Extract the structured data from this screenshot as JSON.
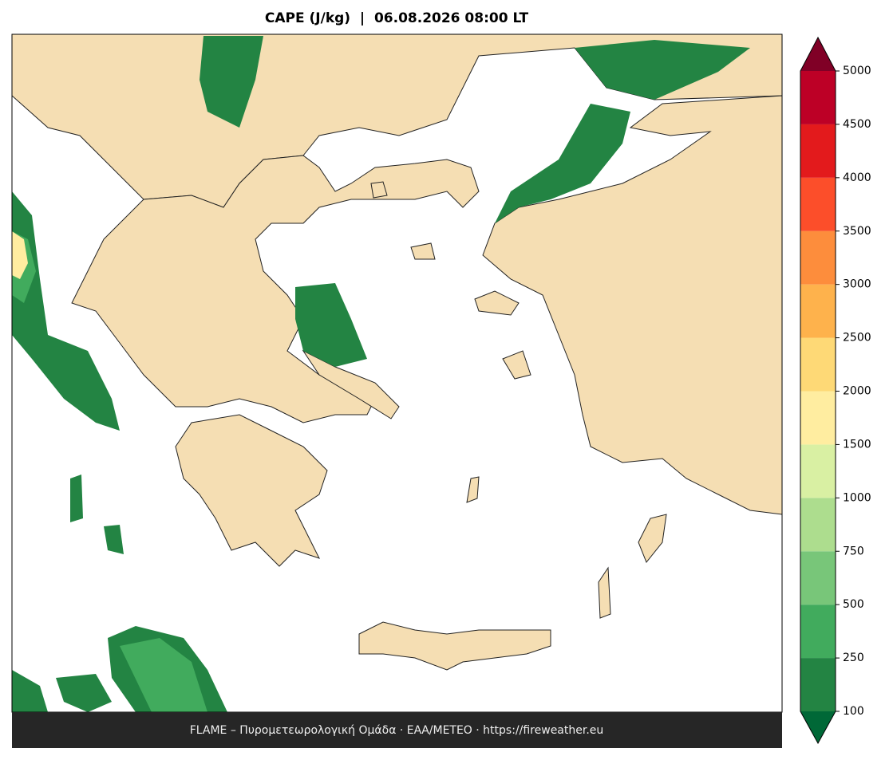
{
  "title": "CAPE (J/kg)  |  06.08.2026 08:00 LT",
  "footer": "FLAME – Πυρομετεωρολογική Ομάδα · ΕΑΑ/METEO · https://fireweather.eu",
  "colorbar": {
    "levels": [
      100,
      250,
      500,
      750,
      1000,
      1500,
      2000,
      2500,
      3000,
      3500,
      4000,
      4500,
      5000
    ],
    "colors": [
      "#238443",
      "#41ab5d",
      "#78c679",
      "#addd8e",
      "#d9f0a3",
      "#ffeda0",
      "#fed976",
      "#feb24c",
      "#fd8d3c",
      "#fc4e2a",
      "#e31a1c",
      "#bd0026"
    ],
    "under_color": "#006837",
    "over_color": "#800026"
  }
}
